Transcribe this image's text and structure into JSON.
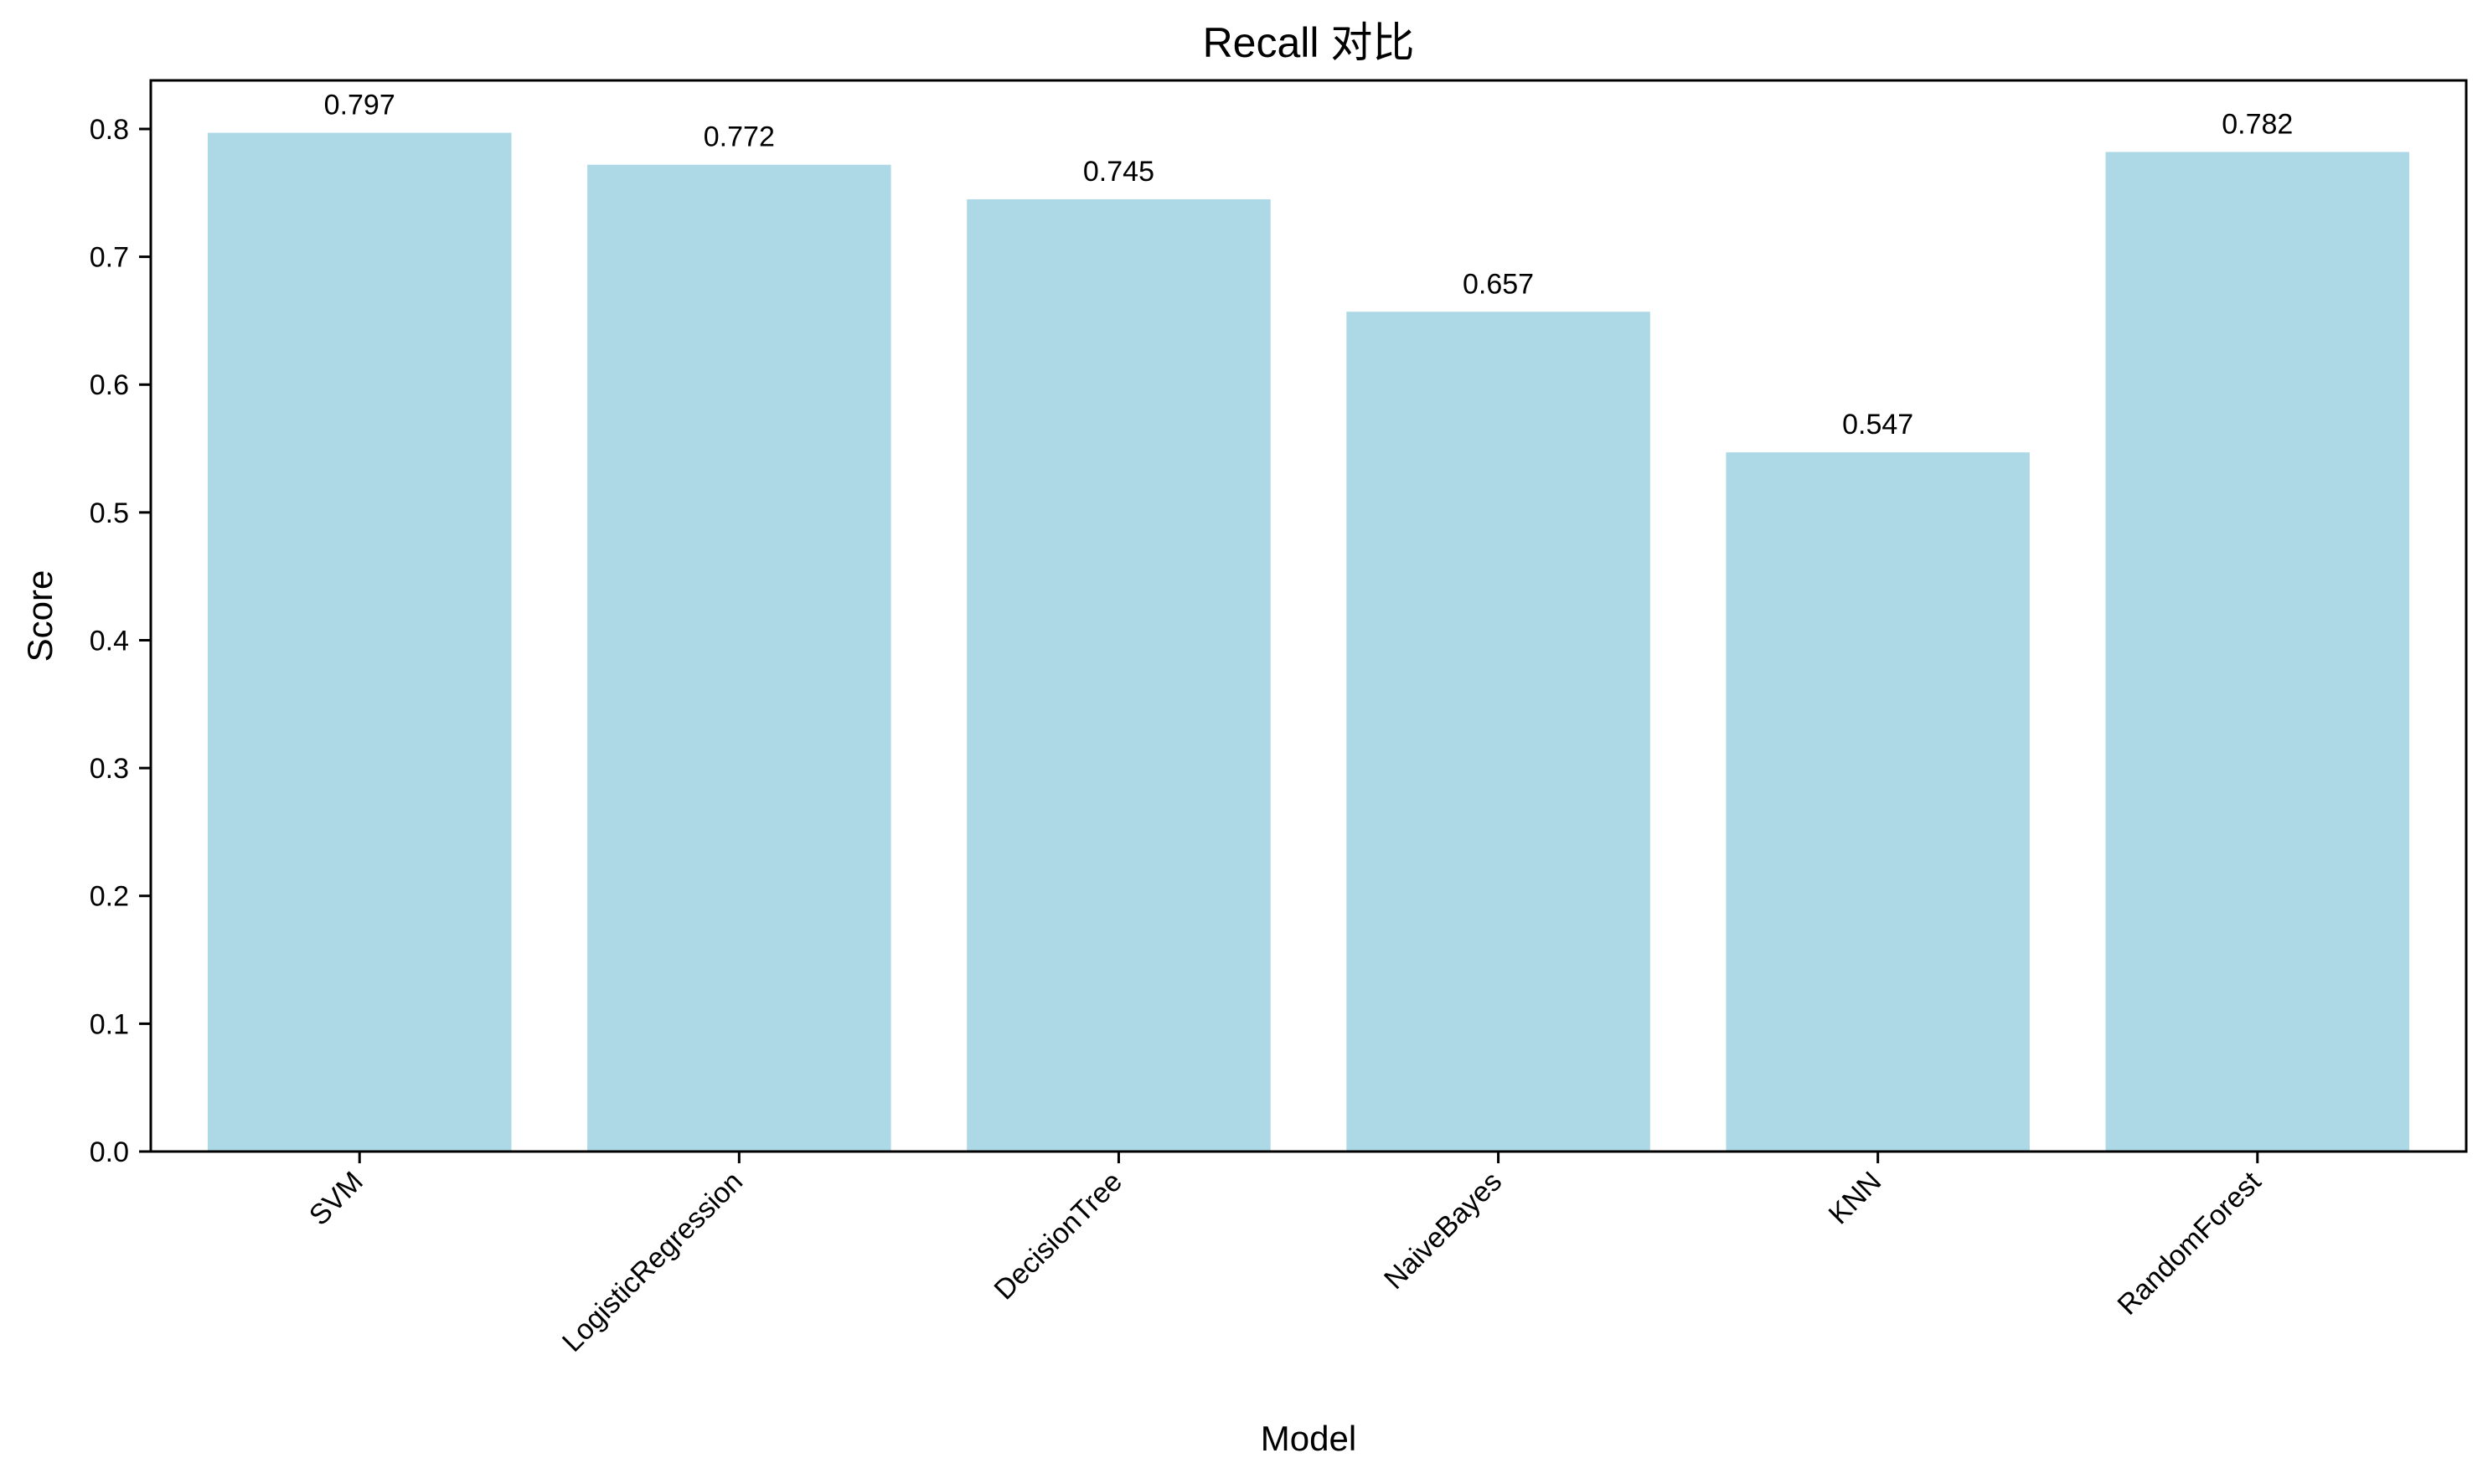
{
  "chart_data": {
    "type": "bar",
    "title": "Recall 对比",
    "xlabel": "Model",
    "ylabel": "Score",
    "categories": [
      "SVM",
      "LogisticRegression",
      "DecisionTree",
      "NaiveBayes",
      "KNN",
      "RandomForest"
    ],
    "values": [
      0.797,
      0.772,
      0.745,
      0.657,
      0.547,
      0.782
    ],
    "value_labels": [
      "0.797",
      "0.772",
      "0.745",
      "0.657",
      "0.547",
      "0.782"
    ],
    "ylim": [
      0,
      0.838
    ],
    "yticks": [
      0.0,
      0.1,
      0.2,
      0.3,
      0.4,
      0.5,
      0.6,
      0.7,
      0.8
    ],
    "ytick_labels": [
      "0.0",
      "0.1",
      "0.2",
      "0.3",
      "0.4",
      "0.5",
      "0.6",
      "0.7",
      "0.8"
    ],
    "bar_color": "#add8e6",
    "grid": false,
    "legend": "none",
    "xtick_rotation_deg": 45
  }
}
